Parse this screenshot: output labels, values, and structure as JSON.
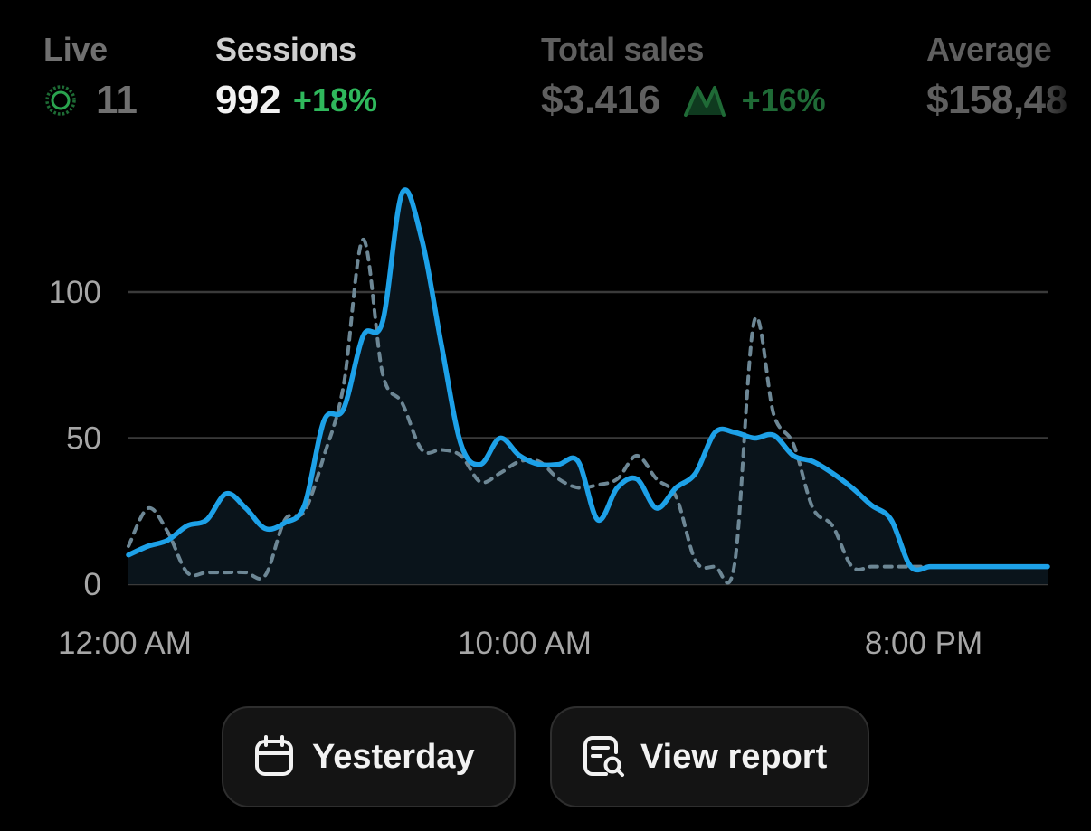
{
  "metrics": {
    "live": {
      "label": "Live",
      "value": "11"
    },
    "sessions": {
      "label": "Sessions",
      "value": "992",
      "delta": "+18%"
    },
    "total_sales": {
      "label": "Total sales",
      "value": "$3.416",
      "delta": "+16%"
    },
    "average": {
      "label": "Average",
      "value": "$158,48"
    }
  },
  "colors": {
    "current_series": "#1da1e8",
    "previous_series": "#6d8795",
    "positive": "#2fb85c",
    "gridline": "#3a3a3a"
  },
  "chart_data": {
    "type": "line",
    "x_tick_labels": [
      "12:00 AM",
      "10:00 AM",
      "8:00 PM"
    ],
    "y_ticks": [
      0,
      50,
      100
    ],
    "ylim": [
      0,
      135
    ],
    "xlim": [
      0,
      23.5
    ],
    "grid": true,
    "series": [
      {
        "style": "solid",
        "x": [
          0,
          0.5,
          1,
          1.5,
          2,
          2.5,
          3,
          3.5,
          4,
          4.5,
          5,
          5.5,
          6,
          6.5,
          7,
          7.5,
          8,
          8.5,
          9,
          9.5,
          10,
          10.5,
          11,
          11.5,
          12,
          12.5,
          13,
          13.5,
          14,
          14.5,
          15,
          15.5,
          16,
          16.5,
          17,
          17.5,
          18,
          18.5,
          19,
          19.5,
          20,
          20.5,
          21,
          21.5,
          22,
          22.5,
          23,
          23.5
        ],
        "values": [
          10,
          13,
          15,
          20,
          22,
          31,
          26,
          19,
          21,
          27,
          56,
          60,
          85,
          90,
          134,
          118,
          82,
          48,
          41,
          50,
          44,
          41,
          41,
          42,
          22,
          33,
          36,
          26,
          33,
          38,
          52,
          52,
          50,
          51,
          44,
          42,
          38,
          33,
          27,
          22,
          6,
          6,
          6,
          6,
          6,
          6,
          6,
          6
        ]
      },
      {
        "style": "dashed",
        "x": [
          0,
          0.5,
          1,
          1.5,
          2,
          2.5,
          3,
          3.5,
          4,
          4.5,
          5,
          5.5,
          6,
          6.5,
          7,
          7.5,
          8,
          8.5,
          9,
          9.5,
          10,
          10.5,
          11,
          11.5,
          12,
          12.5,
          13,
          13.5,
          14,
          14.5,
          15,
          15.5,
          16,
          16.5,
          17,
          17.5,
          18,
          18.5,
          19,
          19.5,
          20,
          20.5,
          21,
          21.5,
          22,
          22.5,
          23,
          23.5
        ],
        "values": [
          13,
          26,
          18,
          4,
          4,
          4,
          4,
          3,
          22,
          25,
          44,
          68,
          118,
          72,
          62,
          46,
          46,
          44,
          35,
          38,
          42,
          42,
          36,
          33,
          34,
          36,
          44,
          36,
          30,
          8,
          6,
          7,
          90,
          58,
          48,
          26,
          20,
          6,
          6,
          6,
          6,
          6,
          6,
          6,
          6,
          6,
          6,
          6
        ]
      }
    ]
  },
  "buttons": {
    "yesterday": {
      "label": "Yesterday",
      "icon": "calendar-icon"
    },
    "view_report": {
      "label": "View report",
      "icon": "report-search-icon"
    }
  }
}
